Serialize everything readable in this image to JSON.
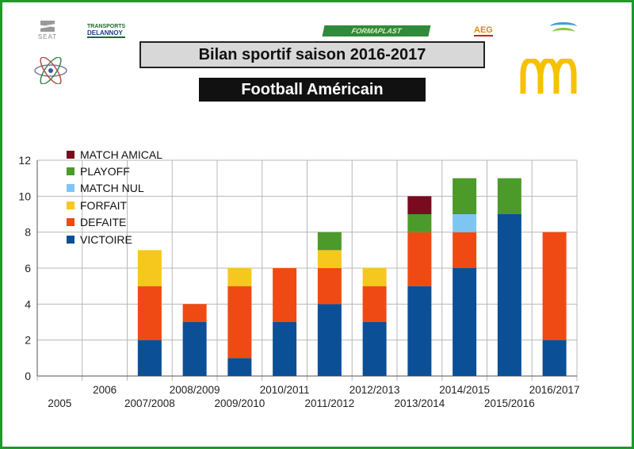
{
  "header": {
    "title": "Bilan sportif saison 2016-2017",
    "subtitle": "Football Américain"
  },
  "sponsors": {
    "seat": "SEAT",
    "transport_top": "TRANSPORTS",
    "transport_name": "DELANNOY",
    "formaplast": "FORMAPLAST",
    "aeg": "AEG"
  },
  "colors": {
    "frame": "#1e9a2a",
    "victoire": "#0b4f96",
    "defaite": "#f04a14",
    "forfait": "#f6c81e",
    "match_nul": "#7ec6f2",
    "playoff": "#4c9a2a",
    "match_amical": "#7a0b1e"
  },
  "chart_data": {
    "type": "bar",
    "stacked": true,
    "categories": [
      "2005",
      "2006",
      "2007/2008",
      "2008/2009",
      "2009/2010",
      "2010/2011",
      "2011/2012",
      "2012/2013",
      "2013/2014",
      "2014/2015",
      "2015/2016",
      "2016/2017"
    ],
    "series": [
      {
        "name": "VICTOIRE",
        "color": "#0b4f96",
        "values": [
          0,
          0,
          2,
          3,
          1,
          3,
          4,
          3,
          5,
          6,
          9,
          2
        ]
      },
      {
        "name": "DEFAITE",
        "color": "#f04a14",
        "values": [
          0,
          0,
          3,
          1,
          4,
          3,
          2,
          2,
          3,
          2,
          0,
          6
        ]
      },
      {
        "name": "FORFAIT",
        "color": "#f6c81e",
        "values": [
          0,
          0,
          2,
          0,
          1,
          0,
          1,
          1,
          0,
          0,
          0,
          0
        ]
      },
      {
        "name": "MATCH NUL",
        "color": "#7ec6f2",
        "values": [
          0,
          0,
          0,
          0,
          0,
          0,
          0,
          0,
          0,
          1,
          0,
          0
        ]
      },
      {
        "name": "PLAYOFF",
        "color": "#4c9a2a",
        "values": [
          0,
          0,
          0,
          0,
          0,
          0,
          1,
          0,
          1,
          2,
          2,
          0
        ]
      },
      {
        "name": "MATCH AMICAL",
        "color": "#7a0b1e",
        "values": [
          0,
          0,
          0,
          0,
          0,
          0,
          0,
          0,
          1,
          0,
          0,
          0
        ]
      }
    ],
    "ylim": [
      0,
      12
    ],
    "yticks": [
      "0",
      "2",
      "4",
      "6",
      "8",
      "10",
      "12"
    ],
    "grid": true,
    "legend": "top-left"
  }
}
